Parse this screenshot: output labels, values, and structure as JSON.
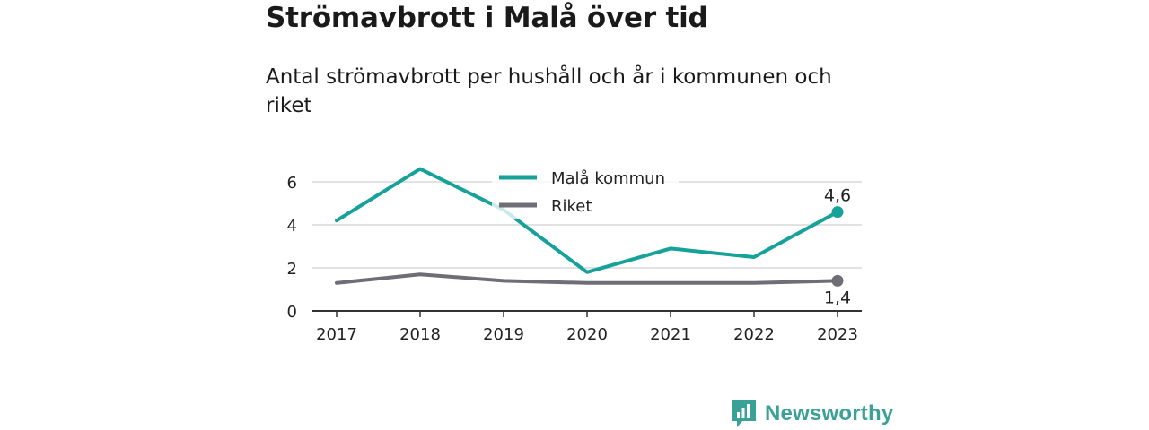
{
  "header": {
    "title": "Strömavbrott i Malå över tid",
    "subtitle": "Antal strömavbrott per hushåll och år i kommunen och riket"
  },
  "chart_data": {
    "type": "line",
    "x": [
      "2017",
      "2018",
      "2019",
      "2020",
      "2021",
      "2022",
      "2023"
    ],
    "ylim": [
      0,
      7
    ],
    "yticks": [
      0,
      2,
      4,
      6
    ],
    "grid": true,
    "legend_position": "top-center",
    "series": [
      {
        "name": "Malå kommun",
        "values": [
          4.2,
          6.6,
          4.7,
          1.8,
          2.9,
          2.5,
          4.6
        ],
        "color": "#16a199",
        "end_label": "4,6"
      },
      {
        "name": "Riket",
        "values": [
          1.3,
          1.7,
          1.4,
          1.3,
          1.3,
          1.3,
          1.4
        ],
        "color": "#6f6e76",
        "end_label": "1,4"
      }
    ]
  },
  "brand": {
    "name": "Newsworthy",
    "icon": "bar-chart-logo-icon",
    "color": "#3aa196"
  }
}
